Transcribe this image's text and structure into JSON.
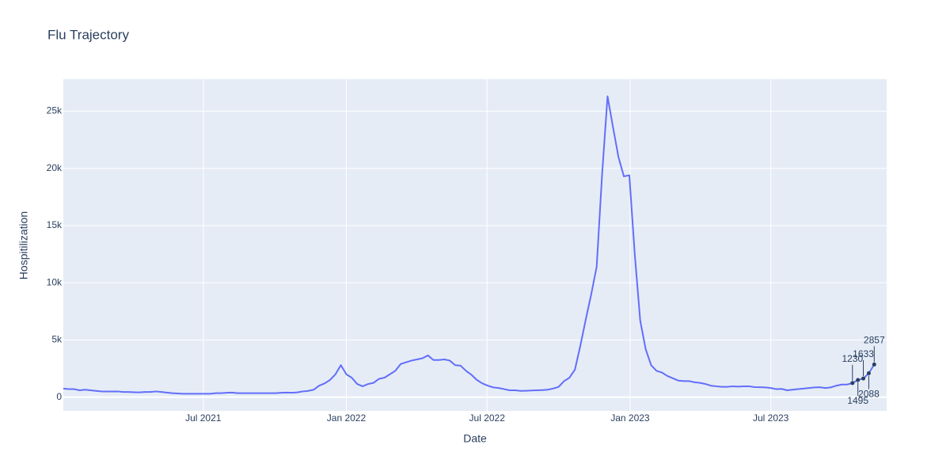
{
  "chart_data": {
    "type": "line",
    "title": "Flu Trajectory",
    "x_label": "Date",
    "y_label": "Hospitilization",
    "x": [
      "2021-01-02",
      "2021-01-09",
      "2021-01-16",
      "2021-01-23",
      "2021-01-30",
      "2021-02-06",
      "2021-02-13",
      "2021-02-20",
      "2021-02-27",
      "2021-03-06",
      "2021-03-13",
      "2021-03-20",
      "2021-03-27",
      "2021-04-03",
      "2021-04-10",
      "2021-04-17",
      "2021-04-24",
      "2021-05-01",
      "2021-05-08",
      "2021-05-15",
      "2021-05-22",
      "2021-05-29",
      "2021-06-05",
      "2021-06-12",
      "2021-06-19",
      "2021-06-26",
      "2021-07-03",
      "2021-07-10",
      "2021-07-17",
      "2021-07-24",
      "2021-07-31",
      "2021-08-07",
      "2021-08-14",
      "2021-08-21",
      "2021-08-28",
      "2021-09-04",
      "2021-09-11",
      "2021-09-18",
      "2021-09-25",
      "2021-10-02",
      "2021-10-09",
      "2021-10-16",
      "2021-10-23",
      "2021-10-30",
      "2021-11-06",
      "2021-11-13",
      "2021-11-20",
      "2021-11-27",
      "2021-12-04",
      "2021-12-11",
      "2021-12-18",
      "2021-12-25",
      "2022-01-01",
      "2022-01-08",
      "2022-01-15",
      "2022-01-22",
      "2022-01-29",
      "2022-02-05",
      "2022-02-12",
      "2022-02-19",
      "2022-02-26",
      "2022-03-05",
      "2022-03-12",
      "2022-03-19",
      "2022-03-26",
      "2022-04-02",
      "2022-04-09",
      "2022-04-16",
      "2022-04-23",
      "2022-04-30",
      "2022-05-07",
      "2022-05-14",
      "2022-05-21",
      "2022-05-28",
      "2022-06-04",
      "2022-06-11",
      "2022-06-18",
      "2022-06-25",
      "2022-07-02",
      "2022-07-09",
      "2022-07-16",
      "2022-07-23",
      "2022-07-30",
      "2022-08-06",
      "2022-08-13",
      "2022-08-20",
      "2022-08-27",
      "2022-09-03",
      "2022-09-10",
      "2022-09-17",
      "2022-09-24",
      "2022-10-01",
      "2022-10-08",
      "2022-10-15",
      "2022-10-22",
      "2022-10-29",
      "2022-11-05",
      "2022-11-12",
      "2022-11-19",
      "2022-11-26",
      "2022-12-03",
      "2022-12-10",
      "2022-12-17",
      "2022-12-24",
      "2022-12-31",
      "2023-01-07",
      "2023-01-14",
      "2023-01-21",
      "2023-01-28",
      "2023-02-04",
      "2023-02-11",
      "2023-02-18",
      "2023-02-25",
      "2023-03-04",
      "2023-03-11",
      "2023-03-18",
      "2023-03-25",
      "2023-04-01",
      "2023-04-08",
      "2023-04-15",
      "2023-04-22",
      "2023-04-29",
      "2023-05-06",
      "2023-05-13",
      "2023-05-20",
      "2023-05-27",
      "2023-06-03",
      "2023-06-10",
      "2023-06-17",
      "2023-06-24",
      "2023-07-01",
      "2023-07-08",
      "2023-07-15",
      "2023-07-22",
      "2023-07-29",
      "2023-08-05",
      "2023-08-12",
      "2023-08-19",
      "2023-08-26",
      "2023-09-02",
      "2023-09-09",
      "2023-09-16",
      "2023-09-23",
      "2023-09-30",
      "2023-10-07",
      "2023-10-14",
      "2023-10-21",
      "2023-10-28",
      "2023-11-04",
      "2023-11-11"
    ],
    "series": [
      {
        "name": "Hospitilization",
        "color": "#636efa",
        "values": [
          750,
          700,
          700,
          600,
          650,
          600,
          550,
          500,
          500,
          500,
          500,
          450,
          450,
          430,
          420,
          450,
          450,
          500,
          450,
          400,
          350,
          320,
          300,
          300,
          300,
          300,
          300,
          300,
          350,
          350,
          380,
          400,
          350,
          350,
          350,
          350,
          350,
          350,
          350,
          350,
          380,
          400,
          380,
          420,
          500,
          550,
          650,
          1000,
          1200,
          1500,
          2000,
          2800,
          2000,
          1700,
          1150,
          950,
          1150,
          1250,
          1600,
          1700,
          2000,
          2300,
          2900,
          3050,
          3200,
          3300,
          3400,
          3650,
          3250,
          3250,
          3300,
          3200,
          2800,
          2750,
          2300,
          1950,
          1500,
          1200,
          1000,
          850,
          800,
          700,
          600,
          600,
          550,
          560,
          580,
          600,
          620,
          650,
          750,
          900,
          1400,
          1700,
          2400,
          4500,
          6800,
          9000,
          11400,
          19500,
          26300,
          23600,
          21000,
          19300,
          19400,
          12500,
          6700,
          4200,
          2800,
          2300,
          2150,
          1850,
          1650,
          1450,
          1400,
          1400,
          1300,
          1250,
          1150,
          1000,
          950,
          900,
          900,
          950,
          920,
          950,
          950,
          880,
          870,
          850,
          800,
          700,
          720,
          600,
          650,
          700,
          750,
          800,
          850,
          870,
          800,
          850,
          1000,
          1100,
          1100,
          1230,
          1495,
          1633,
          2088,
          2857
        ]
      }
    ],
    "annotations": [
      {
        "x": "2023-10-14",
        "text": "1230"
      },
      {
        "x": "2023-10-21",
        "text": "1495"
      },
      {
        "x": "2023-10-28",
        "text": "1633"
      },
      {
        "x": "2023-11-04",
        "text": "2088"
      },
      {
        "x": "2023-11-11",
        "text": "2857"
      }
    ],
    "xlim": [
      "2021-01-02",
      "2023-11-27"
    ],
    "xticks": [
      {
        "value": "2021-07-01",
        "label": "Jul 2021"
      },
      {
        "value": "2022-01-01",
        "label": "Jan 2022"
      },
      {
        "value": "2022-07-01",
        "label": "Jul 2022"
      },
      {
        "value": "2023-01-01",
        "label": "Jan 2023"
      },
      {
        "value": "2023-07-01",
        "label": "Jul 2023"
      }
    ],
    "ylim": [
      -1200,
      27800
    ],
    "yticks": [
      0,
      {
        "value": 5000,
        "label": "5k"
      },
      {
        "value": 10000,
        "label": "10k"
      },
      {
        "value": 15000,
        "label": "15k"
      },
      {
        "value": 20000,
        "label": "20k"
      },
      {
        "value": 25000,
        "label": "25k"
      }
    ],
    "grid": true
  }
}
